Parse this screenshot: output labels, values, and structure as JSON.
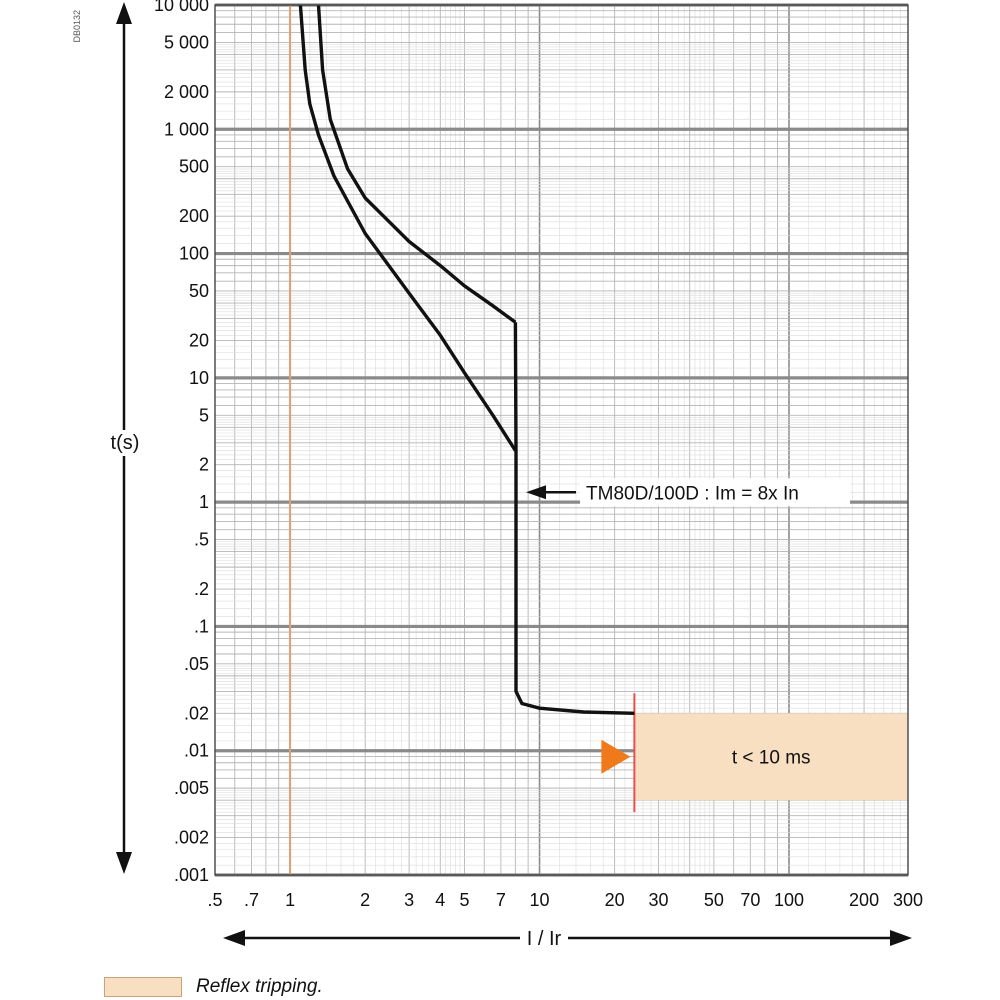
{
  "doc_code": "DB0132",
  "chart_data": {
    "type": "line",
    "title": "",
    "xlabel": "I / Ir",
    "ylabel": "t(s)",
    "x_scale": "log",
    "y_scale": "log",
    "xlim": [
      0.5,
      300
    ],
    "ylim": [
      0.001,
      10000
    ],
    "grid": true,
    "x_ticks": [
      {
        "v": 0.5,
        "label": ".5"
      },
      {
        "v": 0.7,
        "label": ".7"
      },
      {
        "v": 1,
        "label": "1"
      },
      {
        "v": 2,
        "label": "2"
      },
      {
        "v": 3,
        "label": "3"
      },
      {
        "v": 4,
        "label": "4"
      },
      {
        "v": 5,
        "label": "5"
      },
      {
        "v": 7,
        "label": "7"
      },
      {
        "v": 10,
        "label": "10"
      },
      {
        "v": 20,
        "label": "20"
      },
      {
        "v": 30,
        "label": "30"
      },
      {
        "v": 50,
        "label": "50"
      },
      {
        "v": 70,
        "label": "70"
      },
      {
        "v": 100,
        "label": "100"
      },
      {
        "v": 200,
        "label": "200"
      },
      {
        "v": 300,
        "label": "300"
      }
    ],
    "y_ticks": [
      {
        "v": 10000,
        "label": "10 000"
      },
      {
        "v": 5000,
        "label": "5 000"
      },
      {
        "v": 2000,
        "label": "2 000"
      },
      {
        "v": 1000,
        "label": "1 000"
      },
      {
        "v": 500,
        "label": "500"
      },
      {
        "v": 200,
        "label": "200"
      },
      {
        "v": 100,
        "label": "100"
      },
      {
        "v": 50,
        "label": "50"
      },
      {
        "v": 20,
        "label": "20"
      },
      {
        "v": 10,
        "label": "10"
      },
      {
        "v": 5,
        "label": "5"
      },
      {
        "v": 2,
        "label": "2"
      },
      {
        "v": 1,
        "label": "1"
      },
      {
        "v": 0.5,
        "label": ".5"
      },
      {
        "v": 0.2,
        "label": ".2"
      },
      {
        "v": 0.1,
        "label": ".1"
      },
      {
        "v": 0.05,
        "label": ".05"
      },
      {
        "v": 0.02,
        "label": ".02"
      },
      {
        "v": 0.01,
        "label": ".01"
      },
      {
        "v": 0.005,
        "label": ".005"
      },
      {
        "v": 0.002,
        "label": ".002"
      },
      {
        "v": 0.001,
        "label": ".001"
      }
    ],
    "series": [
      {
        "color": "#111111",
        "points": [
          [
            1.1,
            10000
          ],
          [
            1.15,
            3000
          ],
          [
            1.2,
            1600
          ],
          [
            1.3,
            900
          ],
          [
            1.5,
            420
          ],
          [
            2,
            145
          ],
          [
            3,
            48
          ],
          [
            4,
            22
          ],
          [
            5,
            11
          ],
          [
            6.5,
            5
          ],
          [
            8,
            2.6
          ]
        ]
      },
      {
        "color": "#111111",
        "points": [
          [
            1.3,
            10000
          ],
          [
            1.35,
            3000
          ],
          [
            1.45,
            1200
          ],
          [
            1.7,
            480
          ],
          [
            2,
            280
          ],
          [
            3,
            125
          ],
          [
            4,
            80
          ],
          [
            5,
            55
          ],
          [
            6.5,
            38
          ],
          [
            8,
            28
          ]
        ]
      },
      {
        "color": "#111111",
        "points": [
          [
            8,
            28
          ],
          [
            8.05,
            2.6
          ],
          [
            8.05,
            0.03
          ],
          [
            8.5,
            0.024
          ],
          [
            10,
            0.022
          ],
          [
            15,
            0.0205
          ],
          [
            24,
            0.02
          ]
        ]
      }
    ],
    "reference_line": {
      "x": 1,
      "color": "#e0a070"
    },
    "reflex_region": {
      "x_from": 24,
      "x_to": 300,
      "y_from": 0.004,
      "y_to": 0.02,
      "label": "t < 10 ms",
      "color": "#f9dfc2",
      "edge_color": "#e8504a",
      "marker_color": "#f07a1a"
    },
    "annotations": [
      {
        "text": "TM80D/100D : Im = 8x In",
        "x": 8.05,
        "y": 1.2
      }
    ],
    "legend": [
      {
        "label": "Reflex tripping.",
        "color": "#f9dfc2"
      }
    ]
  }
}
